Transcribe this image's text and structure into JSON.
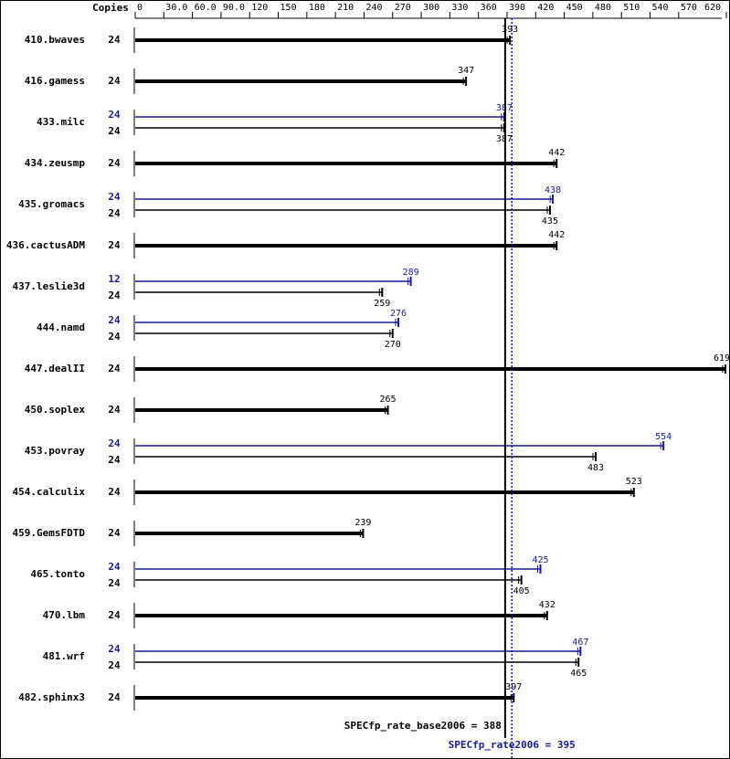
{
  "chart_data": {
    "type": "bar",
    "orientation": "horizontal",
    "copies_label": "Copies",
    "xlim": [
      0,
      620
    ],
    "xticks": [
      0,
      {
        "value": 30,
        "label": "30.0"
      },
      {
        "value": 60,
        "label": "60.0"
      },
      {
        "value": 90,
        "label": "90.0"
      },
      120,
      150,
      180,
      210,
      240,
      270,
      300,
      330,
      360,
      390,
      420,
      450,
      480,
      510,
      540,
      570,
      620
    ],
    "categories": [
      "410.bwaves",
      "416.gamess",
      "433.milc",
      "434.zeusmp",
      "435.gromacs",
      "436.cactusADM",
      "437.leslie3d",
      "444.namd",
      "447.dealII",
      "450.soplex",
      "453.povray",
      "454.calculix",
      "459.GemsFDTD",
      "465.tonto",
      "470.lbm",
      "481.wrf",
      "482.sphinx3"
    ],
    "series": [
      {
        "color": "#000000",
        "copies": [
          24,
          24,
          24,
          24,
          24,
          24,
          24,
          24,
          24,
          24,
          24,
          24,
          24,
          24,
          24,
          24,
          24
        ],
        "values": [
          393,
          347,
          387,
          442,
          435,
          442,
          259,
          270,
          619,
          265,
          483,
          523,
          239,
          405,
          432,
          465,
          397
        ]
      },
      {
        "color": "#191996",
        "copies": [
          null,
          null,
          24,
          null,
          24,
          null,
          12,
          24,
          null,
          null,
          24,
          null,
          null,
          24,
          null,
          24,
          null
        ],
        "values": [
          null,
          null,
          387,
          null,
          438,
          null,
          289,
          276,
          null,
          null,
          554,
          null,
          null,
          425,
          null,
          467,
          null
        ]
      }
    ],
    "reference_lines": [
      {
        "label": "SPECfp_rate_base2006 = 388",
        "value": 388,
        "color": "#000000",
        "style": "solid"
      },
      {
        "label": "SPECfp_rate2006 = 395",
        "value": 395,
        "color": "#191996",
        "style": "dotted"
      }
    ]
  }
}
